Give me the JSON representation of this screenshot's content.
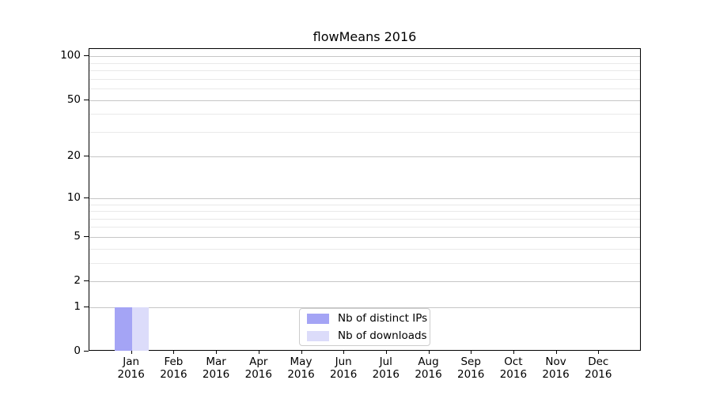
{
  "chart_data": {
    "type": "bar",
    "title": "flowMeans 2016",
    "x_months": [
      "Jan",
      "Feb",
      "Mar",
      "Apr",
      "May",
      "Jun",
      "Jul",
      "Aug",
      "Sep",
      "Oct",
      "Nov",
      "Dec"
    ],
    "x_year": "2016",
    "series": [
      {
        "name": "Nb of distinct IPs",
        "color": "#a4a4f5",
        "values": [
          1,
          0,
          0,
          0,
          0,
          0,
          0,
          0,
          0,
          0,
          0,
          0
        ]
      },
      {
        "name": "Nb of downloads",
        "color": "#dcdcfa",
        "values": [
          1,
          0,
          0,
          0,
          0,
          0,
          0,
          0,
          0,
          0,
          0,
          0
        ]
      }
    ],
    "yscale": "log1p",
    "ylim": [
      0,
      112
    ],
    "yticks": [
      0,
      1,
      2,
      5,
      10,
      20,
      50,
      100
    ],
    "minor_yticks": [
      3,
      4,
      6,
      7,
      8,
      9,
      30,
      40,
      60,
      70,
      80,
      90
    ],
    "grid": "horizontal",
    "legend_position": "lower center"
  },
  "colors": {
    "major_grid": "#c6c6c6",
    "minor_grid": "#e9e9e9",
    "spine": "#000000",
    "background": "#ffffff"
  }
}
